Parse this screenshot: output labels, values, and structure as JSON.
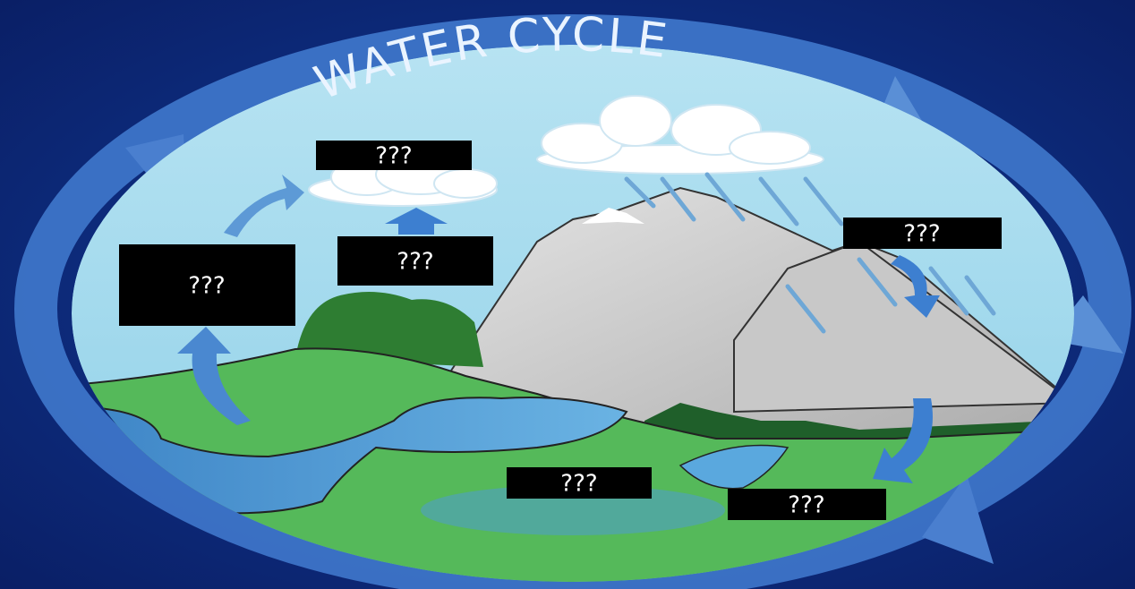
{
  "title": "WATER CYCLE",
  "labels": [
    {
      "text": "???"
    },
    {
      "text": "???"
    },
    {
      "text": "???"
    },
    {
      "text": "???"
    },
    {
      "text": "???"
    },
    {
      "text": "???"
    }
  ]
}
